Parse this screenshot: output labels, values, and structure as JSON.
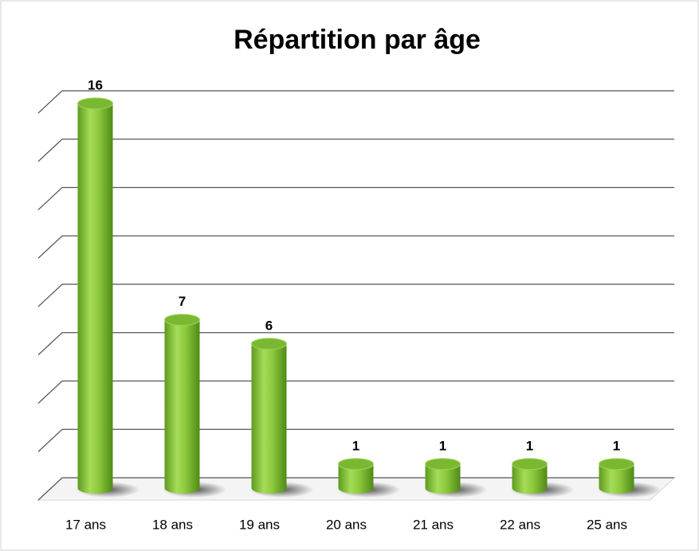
{
  "chart_data": {
    "type": "bar",
    "title": "Répartition par âge",
    "categories": [
      "17 ans",
      "18 ans",
      "19 ans",
      "20 ans",
      "21 ans",
      "22 ans",
      "25 ans"
    ],
    "values": [
      16,
      7,
      6,
      1,
      1,
      1,
      1
    ],
    "color": "#8cc83c",
    "ylim": [
      0,
      16
    ],
    "yticks": [
      0,
      2,
      4,
      6,
      8,
      10,
      12,
      14,
      16
    ],
    "grid": true
  }
}
